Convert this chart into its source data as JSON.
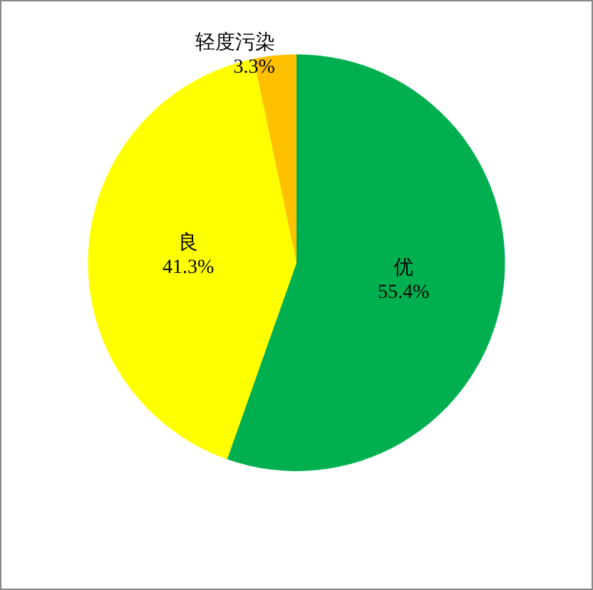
{
  "chart_data": {
    "type": "pie",
    "categories": [
      "优",
      "良",
      "轻度污染"
    ],
    "values": [
      55.4,
      41.3,
      3.3
    ],
    "colors": [
      "#00b050",
      "#ffff00",
      "#ffc000"
    ],
    "value_labels": [
      "55.4%",
      "41.3%",
      "3.3%"
    ],
    "legend": false
  }
}
